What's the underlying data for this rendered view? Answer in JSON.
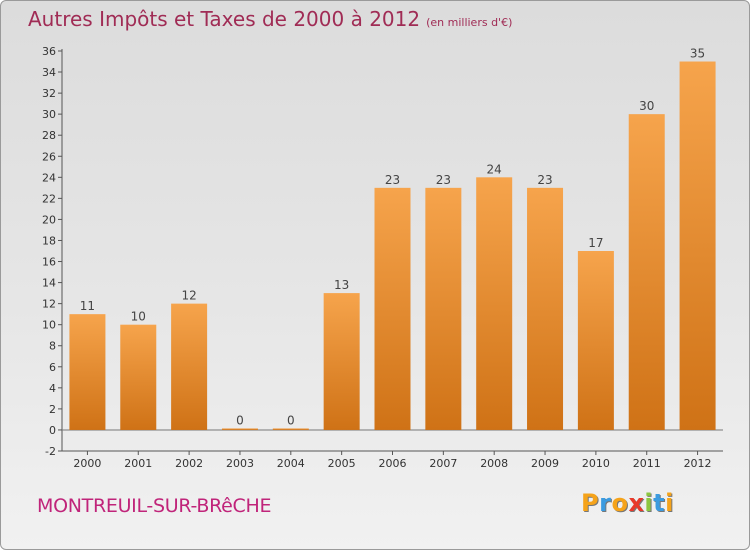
{
  "header": {
    "title": "Autres Impôts et Taxes de 2000 à 2012",
    "unit": "(en milliers d'€)"
  },
  "footer": {
    "city": "MONTREUIL-SUR-BRêCHE",
    "logo_letters": [
      "P",
      "r",
      "o",
      "x",
      "i",
      "t",
      "i"
    ],
    "logo_colors": [
      "#f5a31a",
      "#3b9be0",
      "#f5a31a",
      "#e8392a",
      "#8cc63f",
      "#3b9be0",
      "#f5a31a"
    ]
  },
  "colors": {
    "bar_top": "#f6a44c",
    "bar_bottom": "#cf7216",
    "title": "#a02c55"
  },
  "chart_data": {
    "type": "bar",
    "categories": [
      "2000",
      "2001",
      "2002",
      "2003",
      "2004",
      "2005",
      "2006",
      "2007",
      "2008",
      "2009",
      "2010",
      "2011",
      "2012"
    ],
    "values": [
      11,
      10,
      12,
      0,
      0,
      13,
      23,
      23,
      24,
      23,
      17,
      30,
      35
    ],
    "labels": [
      "11",
      "10",
      "12",
      "0",
      "0",
      "13",
      "23",
      "23",
      "24",
      "23",
      "17",
      "30",
      "35"
    ],
    "title": "Autres Impôts et Taxes de 2000 à 2012",
    "xlabel": "",
    "ylabel": "",
    "ylim": [
      -2,
      36
    ],
    "yticks": [
      -2,
      0,
      2,
      4,
      6,
      8,
      10,
      12,
      14,
      16,
      18,
      20,
      22,
      24,
      26,
      28,
      30,
      32,
      34,
      36
    ],
    "grid": false,
    "legend": "none"
  }
}
